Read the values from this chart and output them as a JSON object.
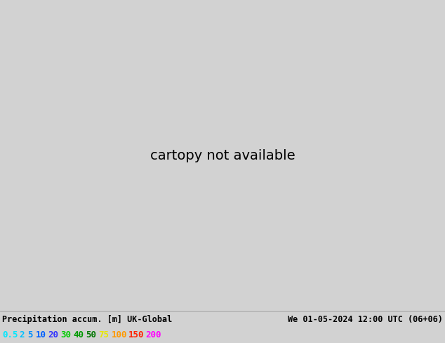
{
  "title_left": "Precipitation accum. [m] UK-Global",
  "title_right": "We 01-05-2024 12:00 UTC (06+06)",
  "colorbar_labels": [
    "0.5",
    "2",
    "5",
    "10",
    "20",
    "30",
    "40",
    "50",
    "75",
    "100",
    "150",
    "200"
  ],
  "colorbar_colors": [
    "#00e8ff",
    "#00c0ff",
    "#0090ff",
    "#0060ff",
    "#3030ff",
    "#00cc00",
    "#009900",
    "#007700",
    "#e8e800",
    "#ff9900",
    "#ff2200",
    "#ff00ff"
  ],
  "bg_color": "#d2d2d2",
  "land_color": "#c8e8a0",
  "sea_color": "#d2d2d2",
  "precip_cyan_light": "#78e0f0",
  "precip_cyan_mid": "#40c8e8",
  "precip_blue": "#4080e0",
  "coast_color": "#888888",
  "fig_w": 6.34,
  "fig_h": 4.9,
  "dpi": 100,
  "lon_min": -22.0,
  "lon_max": 14.0,
  "lat_min": 47.0,
  "lat_max": 67.0
}
